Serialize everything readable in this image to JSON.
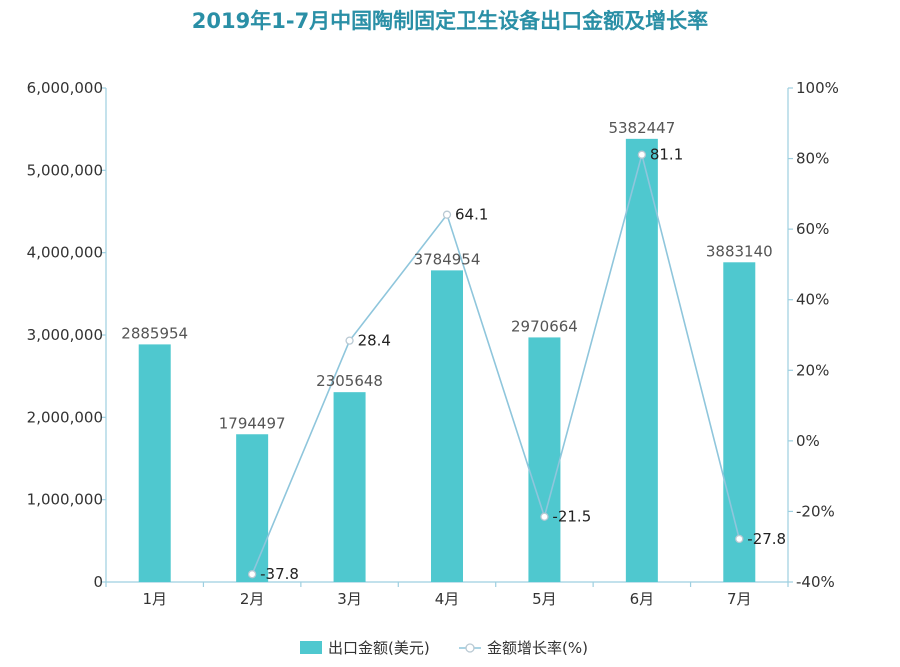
{
  "chart_data": {
    "type": "bar",
    "title": "2019年1-7月中国陶制固定卫生设备出口金额及增长率",
    "categories": [
      "1月",
      "2月",
      "3月",
      "4月",
      "5月",
      "6月",
      "7月"
    ],
    "series": [
      {
        "name": "出口金额(美元)",
        "type": "bar",
        "axis": "left",
        "values": [
          2885954,
          1794497,
          2305648,
          3784954,
          2970664,
          5382447,
          3883140
        ],
        "color": "#4fc8cf"
      },
      {
        "name": "金额增长率(%)",
        "type": "line",
        "axis": "right",
        "values": [
          null,
          -37.8,
          28.4,
          64.1,
          -21.5,
          81.1,
          -27.8
        ],
        "color": "#8fc6dc"
      }
    ],
    "ylim_left": [
      0,
      6000000
    ],
    "yticks_left": [
      "0",
      "1,000,000",
      "2,000,000",
      "3,000,000",
      "4,000,000",
      "5,000,000",
      "6,000,000"
    ],
    "ylim_right": [
      -40,
      100
    ],
    "yticks_right": [
      "-40%",
      "-20%",
      "0%",
      "20%",
      "40%",
      "60%",
      "80%",
      "100%"
    ],
    "grid": false,
    "legend_position": "bottom-center",
    "colors": {
      "title": "#2a8fa6",
      "bar": "#4fc8cf",
      "line": "#8fc6dc",
      "axis": "#9ecfe0"
    }
  }
}
